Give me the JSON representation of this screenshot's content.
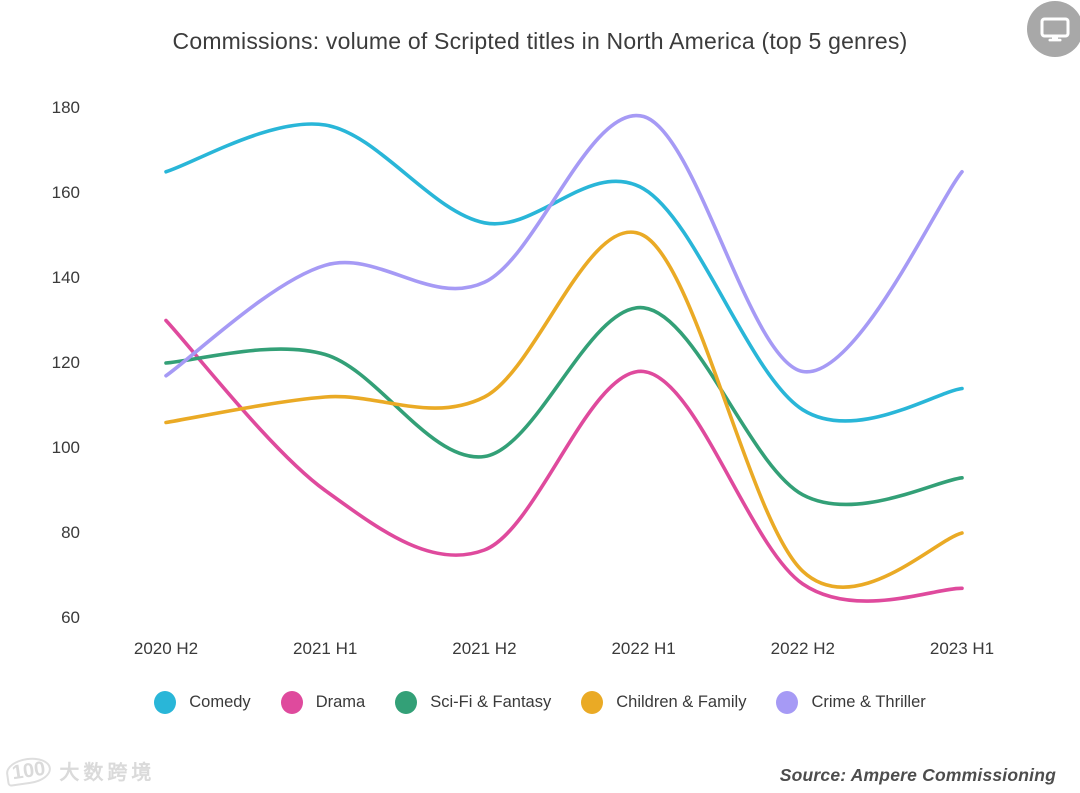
{
  "header": {
    "title": "Commissions: volume of Scripted titles in North America (top 5 genres)"
  },
  "chart_data": {
    "type": "line",
    "title": "Commissions: volume of Scripted titles in North America (top 5 genres)",
    "categories": [
      "2020 H2",
      "2021 H1",
      "2021 H2",
      "2022 H1",
      "2022 H2",
      "2023 H1"
    ],
    "series": [
      {
        "name": "Comedy",
        "color": "#29b6d8",
        "values": [
          165,
          176,
          153,
          161,
          109,
          114
        ]
      },
      {
        "name": "Drama",
        "color": "#df4a9d",
        "values": [
          130,
          90,
          76,
          118,
          68,
          67
        ]
      },
      {
        "name": "Sci-Fi & Fantasy",
        "color": "#33a077",
        "values": [
          120,
          122,
          98,
          133,
          89,
          93
        ]
      },
      {
        "name": "Children & Family",
        "color": "#eaaa25",
        "values": [
          106,
          112,
          112,
          150,
          71,
          80
        ]
      },
      {
        "name": "Crime & Thriller",
        "color": "#a69af5",
        "values": [
          117,
          143,
          139,
          178,
          118,
          165
        ]
      }
    ],
    "y_ticks": [
      180,
      160,
      140,
      120,
      100,
      80,
      60
    ],
    "ylim": [
      60,
      180
    ],
    "xlabel": "",
    "ylabel": "",
    "grid": false,
    "legend_position": "bottom"
  },
  "icons": {
    "screen_icon": "monitor-icon"
  },
  "footer": {
    "source": "Source: Ampere Commissioning",
    "watermark_logo": "100",
    "watermark_text": "大数跨境"
  }
}
